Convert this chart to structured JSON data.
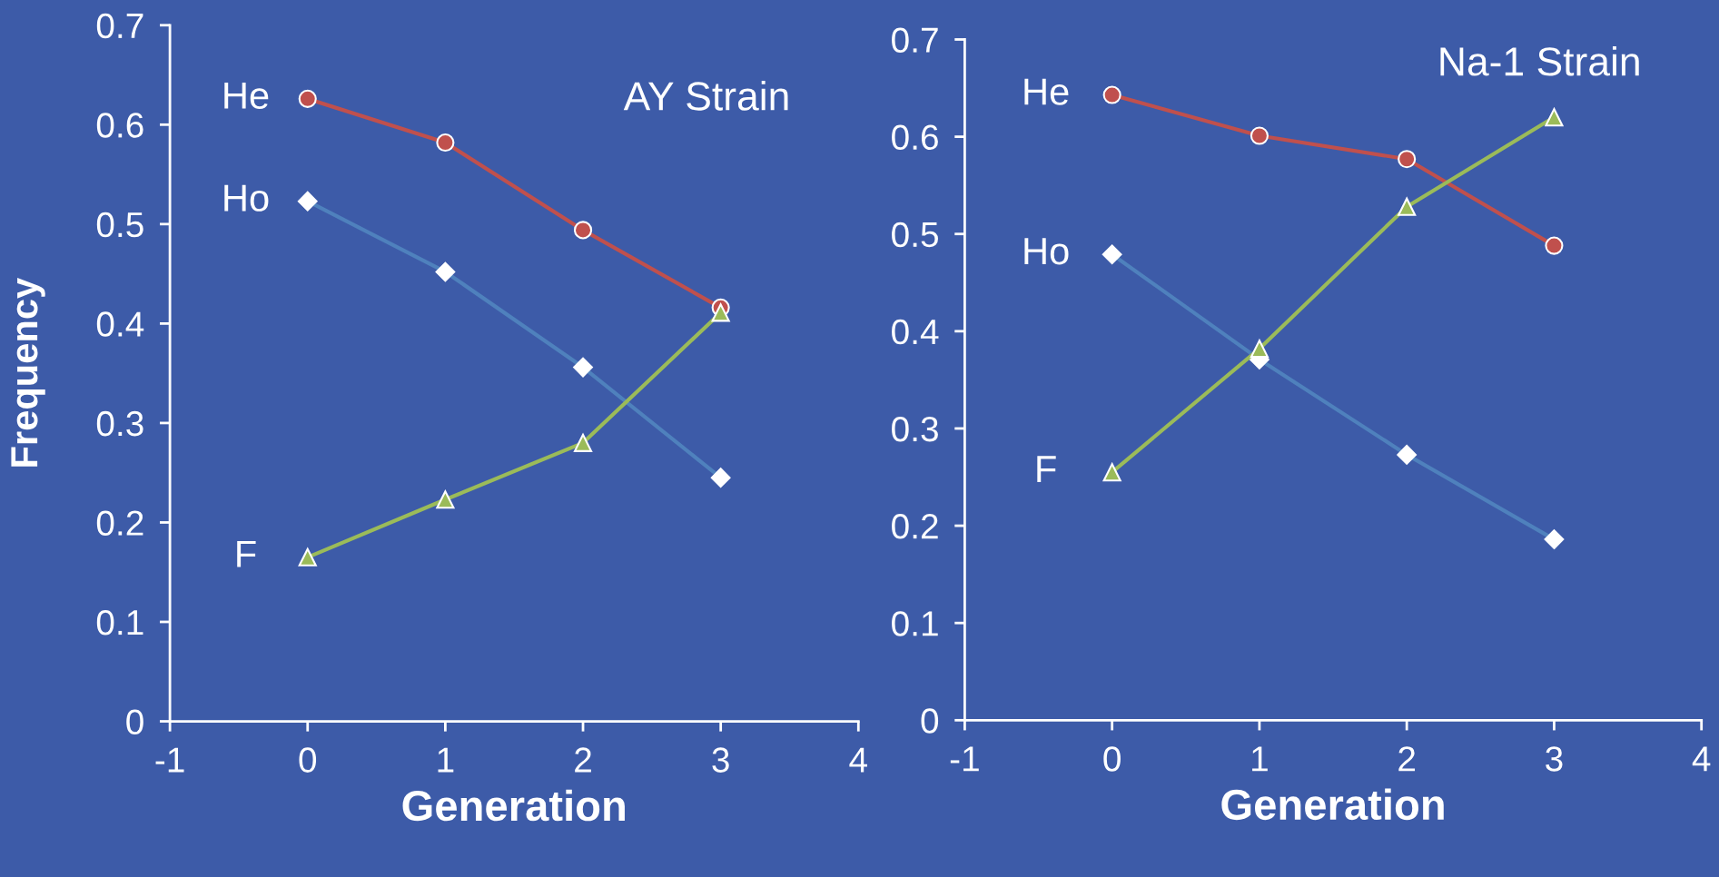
{
  "chart_data": [
    {
      "type": "line",
      "title": "AY Strain",
      "xlabel": "Generation",
      "ylabel": "Frequency",
      "x": [
        0,
        1,
        2,
        3
      ],
      "xlim": [
        -1,
        4
      ],
      "xticks": [
        -1,
        0,
        1,
        2,
        3,
        4
      ],
      "ylim": [
        0,
        0.7
      ],
      "yticks": [
        0,
        0.1,
        0.2,
        0.3,
        0.4,
        0.5,
        0.6,
        0.7
      ],
      "grid": false,
      "legend": false,
      "series": [
        {
          "name": "He",
          "color": "#c0504d",
          "marker": "circle",
          "values": [
            0.626,
            0.582,
            0.494,
            0.416
          ]
        },
        {
          "name": "Ho",
          "color": "#4f81bd",
          "marker": "diamond",
          "values": [
            0.523,
            0.452,
            0.356,
            0.245
          ]
        },
        {
          "name": "F",
          "color": "#9bbb59",
          "marker": "triangle",
          "values": [
            0.165,
            0.223,
            0.28,
            0.411
          ]
        }
      ]
    },
    {
      "type": "line",
      "title": "Na-1 Strain",
      "xlabel": "Generation",
      "x": [
        0,
        1,
        2,
        3
      ],
      "xlim": [
        -1,
        4
      ],
      "xticks": [
        -1,
        0,
        1,
        2,
        3,
        4
      ],
      "ylim": [
        0,
        0.7
      ],
      "yticks": [
        0,
        0.1,
        0.2,
        0.3,
        0.4,
        0.5,
        0.6,
        0.7
      ],
      "grid": false,
      "legend": false,
      "series": [
        {
          "name": "He",
          "color": "#c0504d",
          "marker": "circle",
          "values": [
            0.643,
            0.601,
            0.577,
            0.488
          ]
        },
        {
          "name": "Ho",
          "color": "#4f81bd",
          "marker": "diamond",
          "values": [
            0.479,
            0.371,
            0.273,
            0.186
          ]
        },
        {
          "name": "F",
          "color": "#9bbb59",
          "marker": "triangle",
          "values": [
            0.255,
            0.382,
            0.528,
            0.62
          ]
        }
      ]
    }
  ]
}
